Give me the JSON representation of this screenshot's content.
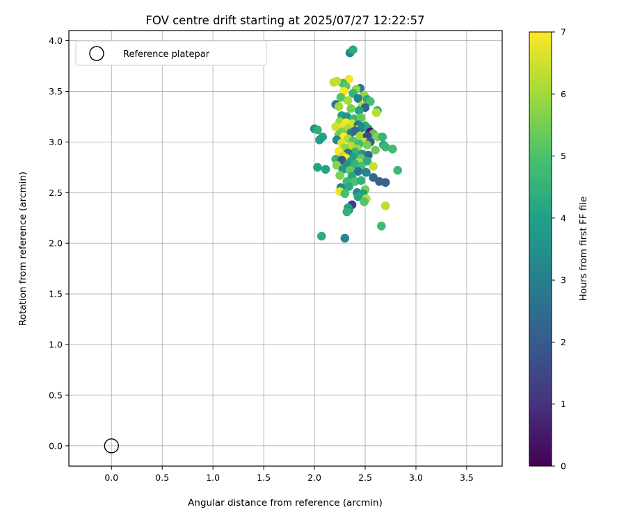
{
  "chart_data": {
    "type": "scatter",
    "title": "FOV centre drift starting at 2025/07/27 12:22:57",
    "xlabel": "Angular distance from reference (arcmin)",
    "ylabel": "Rotation from reference (arcmin)",
    "xlim": [
      -0.42,
      3.85
    ],
    "ylim": [
      -0.2,
      4.1
    ],
    "xticks": [
      0.0,
      0.5,
      1.0,
      1.5,
      2.0,
      2.5,
      3.0,
      3.5
    ],
    "yticks": [
      0.0,
      0.5,
      1.0,
      1.5,
      2.0,
      2.5,
      3.0,
      3.5,
      4.0
    ],
    "grid": true,
    "legend": {
      "placement": "top-left",
      "entries": [
        "Reference platepar"
      ]
    },
    "reference_point": {
      "x": 0.0,
      "y": 0.0,
      "label": "Reference platepar"
    },
    "colorbar": {
      "label": "Hours from first FF file",
      "colormap": "viridis",
      "range": [
        0,
        7
      ],
      "ticks": [
        0,
        1,
        2,
        3,
        4,
        5,
        6,
        7
      ]
    },
    "points": [
      [
        2.35,
        3.88,
        3.2
      ],
      [
        2.38,
        3.91,
        4.3
      ],
      [
        2.34,
        3.62,
        6.9
      ],
      [
        2.28,
        3.58,
        4.8
      ],
      [
        2.22,
        3.6,
        6.3
      ],
      [
        2.19,
        3.59,
        6.4
      ],
      [
        2.45,
        3.53,
        2.8
      ],
      [
        2.31,
        3.55,
        5.2
      ],
      [
        2.41,
        3.52,
        5.8
      ],
      [
        2.29,
        3.5,
        6.9
      ],
      [
        2.38,
        3.48,
        4.5
      ],
      [
        2.49,
        3.46,
        5.9
      ],
      [
        2.26,
        3.44,
        5.1
      ],
      [
        2.43,
        3.43,
        3.1
      ],
      [
        2.52,
        3.42,
        4.2
      ],
      [
        2.55,
        3.4,
        4.9
      ],
      [
        2.33,
        3.41,
        6.1
      ],
      [
        2.21,
        3.37,
        2.5
      ],
      [
        2.24,
        3.35,
        6.0
      ],
      [
        2.47,
        3.36,
        6.2
      ],
      [
        2.5,
        3.34,
        2.2
      ],
      [
        2.36,
        3.33,
        5.5
      ],
      [
        2.44,
        3.31,
        4.1
      ],
      [
        2.62,
        3.31,
        4.5
      ],
      [
        2.61,
        3.29,
        6.3
      ],
      [
        2.27,
        3.26,
        4.0
      ],
      [
        2.32,
        3.25,
        3.6
      ],
      [
        2.39,
        3.23,
        4.7
      ],
      [
        2.46,
        3.24,
        5.3
      ],
      [
        2.25,
        3.2,
        5.9
      ],
      [
        2.31,
        3.19,
        7.0
      ],
      [
        2.37,
        3.18,
        6.6
      ],
      [
        2.43,
        3.17,
        2.9
      ],
      [
        2.29,
        3.16,
        6.8
      ],
      [
        2.21,
        3.15,
        6.5
      ],
      [
        2.5,
        3.16,
        4.4
      ],
      [
        2.33,
        3.13,
        6.1
      ],
      [
        2.42,
        3.12,
        6.8
      ],
      [
        2.47,
        3.14,
        3.3
      ],
      [
        2.53,
        3.13,
        4.2
      ],
      [
        2.0,
        3.13,
        3.6
      ],
      [
        2.03,
        3.12,
        4.4
      ],
      [
        2.27,
        3.1,
        5.6
      ],
      [
        2.36,
        3.09,
        3.0
      ],
      [
        2.4,
        3.11,
        2.4
      ],
      [
        2.55,
        3.1,
        0.5
      ],
      [
        2.58,
        3.08,
        5.2
      ],
      [
        2.24,
        3.07,
        5.4
      ],
      [
        2.45,
        3.06,
        6.0
      ],
      [
        2.52,
        3.06,
        1.5
      ],
      [
        2.62,
        3.05,
        5.7
      ],
      [
        2.67,
        3.05,
        4.6
      ],
      [
        2.29,
        3.05,
        7.0
      ],
      [
        2.33,
        3.03,
        6.2
      ],
      [
        2.08,
        3.05,
        4.1
      ],
      [
        2.05,
        3.02,
        3.9
      ],
      [
        2.22,
        3.02,
        3.3
      ],
      [
        2.38,
        3.01,
        5.1
      ],
      [
        2.49,
        3.0,
        6.5
      ],
      [
        2.55,
        3.0,
        2.0
      ],
      [
        2.27,
        2.99,
        6.6
      ],
      [
        2.44,
        2.98,
        4.8
      ],
      [
        2.52,
        2.97,
        5.5
      ],
      [
        2.68,
        2.97,
        4.3
      ],
      [
        2.7,
        2.95,
        4.7
      ],
      [
        2.77,
        2.93,
        4.8
      ],
      [
        2.36,
        2.96,
        6.3
      ],
      [
        2.3,
        2.94,
        5.8
      ],
      [
        2.42,
        2.93,
        6.0
      ],
      [
        2.6,
        2.92,
        5.4
      ],
      [
        2.24,
        2.91,
        6.9
      ],
      [
        2.4,
        2.9,
        4.5
      ],
      [
        2.47,
        2.88,
        3.7
      ],
      [
        2.33,
        2.89,
        2.6
      ],
      [
        2.53,
        2.87,
        2.4
      ],
      [
        2.28,
        2.86,
        6.4
      ],
      [
        2.38,
        2.85,
        3.9
      ],
      [
        2.46,
        2.84,
        5.2
      ],
      [
        2.31,
        2.84,
        7.0
      ],
      [
        2.21,
        2.83,
        4.6
      ],
      [
        2.27,
        2.82,
        1.8
      ],
      [
        2.36,
        2.81,
        4.0
      ],
      [
        2.44,
        2.8,
        6.1
      ],
      [
        2.52,
        2.81,
        4.4
      ],
      [
        2.22,
        2.77,
        5.7
      ],
      [
        2.32,
        2.77,
        3.5
      ],
      [
        2.4,
        2.78,
        4.5
      ],
      [
        2.46,
        2.76,
        4.9
      ],
      [
        2.58,
        2.76,
        6.4
      ],
      [
        2.11,
        2.73,
        4.1
      ],
      [
        2.03,
        2.75,
        4.1
      ],
      [
        2.82,
        2.72,
        4.7
      ],
      [
        2.28,
        2.73,
        3.8
      ],
      [
        2.35,
        2.72,
        5.3
      ],
      [
        2.43,
        2.71,
        2.7
      ],
      [
        2.51,
        2.7,
        3.1
      ],
      [
        2.25,
        2.67,
        5.6
      ],
      [
        2.37,
        2.66,
        4.2
      ],
      [
        2.58,
        2.65,
        2.4
      ],
      [
        2.64,
        2.61,
        2.2
      ],
      [
        2.7,
        2.6,
        2.2
      ],
      [
        2.32,
        2.61,
        4.8
      ],
      [
        2.4,
        2.61,
        5.0
      ],
      [
        2.46,
        2.62,
        4.5
      ],
      [
        2.26,
        2.55,
        3.2
      ],
      [
        2.34,
        2.56,
        4.3
      ],
      [
        2.5,
        2.53,
        5.5
      ],
      [
        2.25,
        2.51,
        6.8
      ],
      [
        2.42,
        2.5,
        3.3
      ],
      [
        2.48,
        2.49,
        4.0
      ],
      [
        2.3,
        2.49,
        4.9
      ],
      [
        2.43,
        2.46,
        4.1
      ],
      [
        2.51,
        2.44,
        6.2
      ],
      [
        2.49,
        2.41,
        5.1
      ],
      [
        2.37,
        2.38,
        1.2
      ],
      [
        2.33,
        2.35,
        4.2
      ],
      [
        2.34,
        2.33,
        3.9
      ],
      [
        2.32,
        2.31,
        4.5
      ],
      [
        2.7,
        2.37,
        6.3
      ],
      [
        2.66,
        2.17,
        4.8
      ],
      [
        2.07,
        2.07,
        4.4
      ],
      [
        2.3,
        2.05,
        3.2
      ]
    ]
  }
}
